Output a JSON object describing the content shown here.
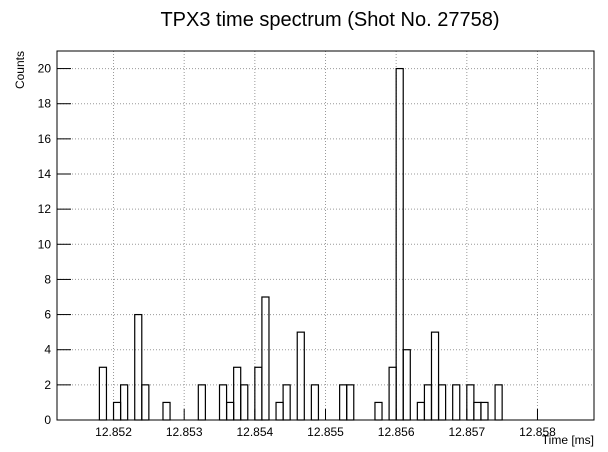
{
  "chart_data": {
    "type": "histogram",
    "title": "TPX3 time spectrum (Shot No. 27758)",
    "xlabel": "Time [ms]",
    "ylabel": "Counts",
    "bins": [
      12.8512,
      12.8513,
      12.8514,
      12.8515,
      12.8516,
      12.8517,
      12.8518,
      12.8519,
      12.852,
      12.8521,
      12.8522,
      12.8523,
      12.8524,
      12.8525,
      12.8526,
      12.8527,
      12.8528,
      12.8529,
      12.853,
      12.8531,
      12.8532,
      12.8533,
      12.8534,
      12.8535,
      12.8536,
      12.8537,
      12.8538,
      12.8539,
      12.854,
      12.8541,
      12.8542,
      12.8543,
      12.8544,
      12.8545,
      12.8546,
      12.8547,
      12.8548,
      12.8549,
      12.855,
      12.8551,
      12.8552,
      12.8553,
      12.8554,
      12.8555,
      12.8556,
      12.8557,
      12.8558,
      12.8559,
      12.856,
      12.8561,
      12.8562,
      12.8563,
      12.8564,
      12.8565,
      12.8566,
      12.8567,
      12.8568,
      12.8569,
      12.857,
      12.8571,
      12.8572,
      12.8573,
      12.8574,
      12.8575,
      12.8576,
      12.8577,
      12.8578,
      12.8579,
      12.858,
      12.8581,
      12.8582,
      12.8583,
      12.8584,
      12.8585,
      12.8586,
      12.8587,
      12.8588
    ],
    "values": [
      0,
      0,
      0,
      0,
      0,
      0,
      3,
      0,
      1,
      2,
      0,
      6,
      2,
      0,
      0,
      1,
      0,
      0,
      0,
      0,
      2,
      0,
      0,
      2,
      1,
      3,
      2,
      0,
      3,
      7,
      0,
      1,
      2,
      0,
      5,
      0,
      2,
      0,
      0,
      0,
      2,
      2,
      0,
      0,
      0,
      1,
      0,
      3,
      20,
      4,
      0,
      1,
      2,
      5,
      2,
      0,
      2,
      0,
      2,
      1,
      1,
      0,
      2,
      0,
      0,
      0,
      0,
      0,
      0,
      0,
      0,
      0,
      0,
      0,
      0,
      0
    ],
    "color": "#000000",
    "xlim": [
      12.8512,
      12.8588
    ],
    "xticks": [
      12.852,
      12.853,
      12.854,
      12.855,
      12.856,
      12.857,
      12.858
    ],
    "ylim": [
      0,
      21
    ],
    "yticks": [
      0,
      2,
      4,
      6,
      8,
      10,
      12,
      14,
      16,
      18,
      20
    ],
    "grid": true
  }
}
